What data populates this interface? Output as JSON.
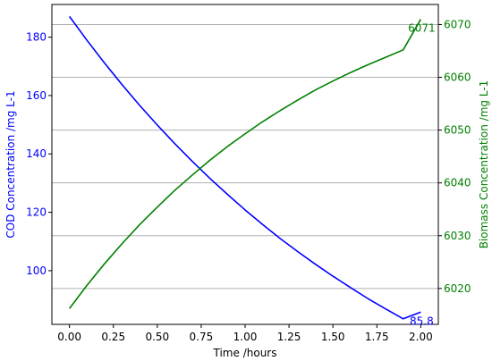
{
  "chart_data": {
    "type": "line",
    "xlabel": "Time /hours",
    "x_ticks": [
      "0.00",
      "0.25",
      "0.50",
      "0.75",
      "1.00",
      "1.25",
      "1.50",
      "1.75",
      "2.00"
    ],
    "xlim": [
      -0.1,
      2.1
    ],
    "left_axis": {
      "label": "COD Concentration /mg L-1",
      "color": "#0000ff",
      "ylim": [
        81.6,
        191.2
      ],
      "ticks": [
        "100",
        "120",
        "140",
        "160",
        "180"
      ]
    },
    "right_axis": {
      "label": "Biomass Concentration /mg L-1",
      "color": "#008000",
      "ylim": [
        6013.2,
        6073.8
      ],
      "ticks": [
        "6020",
        "6030",
        "6040",
        "6050",
        "6060",
        "6070"
      ]
    },
    "grid": "horizontal (right axis)",
    "series": [
      {
        "axis": "left",
        "color": "#0000ff",
        "x": [
          0,
          0.1,
          0.2,
          0.3,
          0.4,
          0.5,
          0.6,
          0.7,
          0.8,
          0.9,
          1.0,
          1.1,
          1.2,
          1.3,
          1.4,
          1.5,
          1.6,
          1.7,
          1.8,
          1.9,
          2.0
        ],
        "y": [
          187.1,
          178.9,
          171.1,
          163.7,
          156.6,
          149.9,
          143.5,
          137.4,
          131.6,
          126.1,
          120.8,
          115.8,
          111.0,
          106.5,
          102.2,
          98.1,
          94.2,
          90.4,
          86.9,
          83.5,
          85.8
        ]
      },
      {
        "axis": "right",
        "color": "#008000",
        "x": [
          0,
          0.1,
          0.2,
          0.3,
          0.4,
          0.5,
          0.6,
          0.7,
          0.8,
          0.9,
          1.0,
          1.1,
          1.2,
          1.3,
          1.4,
          1.5,
          1.6,
          1.7,
          1.8,
          1.9,
          2.0
        ],
        "y": [
          6016.2,
          6020.6,
          6024.7,
          6028.5,
          6032.1,
          6035.4,
          6038.6,
          6041.5,
          6044.3,
          6046.9,
          6049.3,
          6051.6,
          6053.7,
          6055.7,
          6057.6,
          6059.3,
          6060.9,
          6062.4,
          6063.8,
          6065.2,
          6071.0
        ]
      }
    ],
    "annotations": [
      {
        "text": "6071",
        "x": 2.0,
        "axis": "right",
        "color": "#008000"
      },
      {
        "text": "85.8",
        "x": 2.0,
        "axis": "left",
        "color": "#0000ff"
      }
    ]
  }
}
